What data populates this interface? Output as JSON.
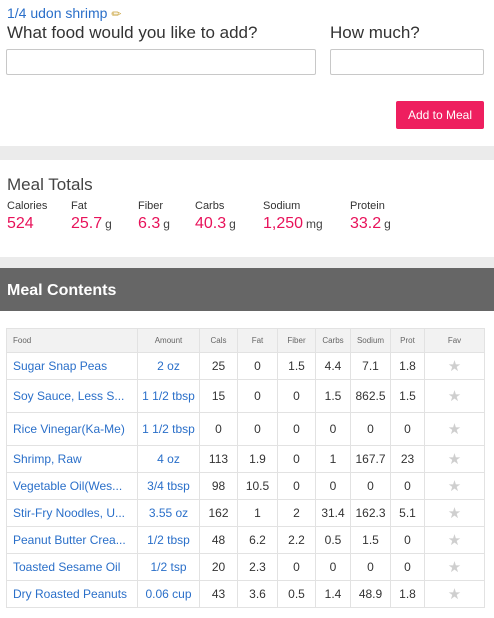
{
  "meal": {
    "name": "1/4 udon shrimp",
    "edit_icon": "pencil-icon"
  },
  "form": {
    "food_label": "What food would you like to add?",
    "quantity_label": "How much?",
    "food_value": "",
    "quantity_value": "",
    "add_button": "Add to Meal"
  },
  "totals": {
    "title": "Meal Totals",
    "items": [
      {
        "label": "Calories",
        "value": "524",
        "unit": ""
      },
      {
        "label": "Fat",
        "value": "25.7",
        "unit": "g"
      },
      {
        "label": "Fiber",
        "value": "6.3",
        "unit": "g"
      },
      {
        "label": "Carbs",
        "value": "40.3",
        "unit": "g"
      },
      {
        "label": "Sodium",
        "value": "1,250",
        "unit": "mg"
      },
      {
        "label": "Protein",
        "value": "33.2",
        "unit": "g"
      }
    ]
  },
  "contents": {
    "title": "Meal Contents",
    "columns": [
      "Food",
      "Amount",
      "Cals",
      "Fat",
      "Fiber",
      "Carbs",
      "Sodium",
      "Prot",
      "Fav"
    ],
    "rows": [
      {
        "food": "Sugar Snap Peas",
        "amount": "2 oz",
        "cals": "25",
        "fat": "0",
        "fiber": "1.5",
        "carbs": "4.4",
        "sodium": "7.1",
        "prot": "1.8"
      },
      {
        "food": "Soy Sauce, Less S...",
        "amount": "1 1/2 tbsp",
        "cals": "15",
        "fat": "0",
        "fiber": "0",
        "carbs": "1.5",
        "sodium": "862.5",
        "prot": "1.5"
      },
      {
        "food": "Rice Vinegar(Ka-Me)",
        "amount": "1 1/2 tbsp",
        "cals": "0",
        "fat": "0",
        "fiber": "0",
        "carbs": "0",
        "sodium": "0",
        "prot": "0"
      },
      {
        "food": "Shrimp, Raw",
        "amount": "4 oz",
        "cals": "113",
        "fat": "1.9",
        "fiber": "0",
        "carbs": "1",
        "sodium": "167.7",
        "prot": "23"
      },
      {
        "food": "Vegetable Oil(Wes...",
        "amount": "3/4 tbsp",
        "cals": "98",
        "fat": "10.5",
        "fiber": "0",
        "carbs": "0",
        "sodium": "0",
        "prot": "0"
      },
      {
        "food": "Stir-Fry Noodles, U...",
        "amount": "3.55 oz",
        "cals": "162",
        "fat": "1",
        "fiber": "2",
        "carbs": "31.4",
        "sodium": "162.3",
        "prot": "5.1"
      },
      {
        "food": "Peanut Butter Crea...",
        "amount": "1/2 tbsp",
        "cals": "48",
        "fat": "6.2",
        "fiber": "2.2",
        "carbs": "0.5",
        "sodium": "1.5",
        "prot": "0"
      },
      {
        "food": "Toasted Sesame Oil",
        "amount": "1/2 tsp",
        "cals": "20",
        "fat": "2.3",
        "fiber": "0",
        "carbs": "0",
        "sodium": "0",
        "prot": "0"
      },
      {
        "food": "Dry Roasted Peanuts",
        "amount": "0.06 cup",
        "cals": "43",
        "fat": "3.6",
        "fiber": "0.5",
        "carbs": "1.4",
        "sodium": "48.9",
        "prot": "1.8"
      }
    ]
  },
  "colors": {
    "accent": "#ee1f5f",
    "link": "#2a6fc9",
    "header_bg": "#666666"
  }
}
